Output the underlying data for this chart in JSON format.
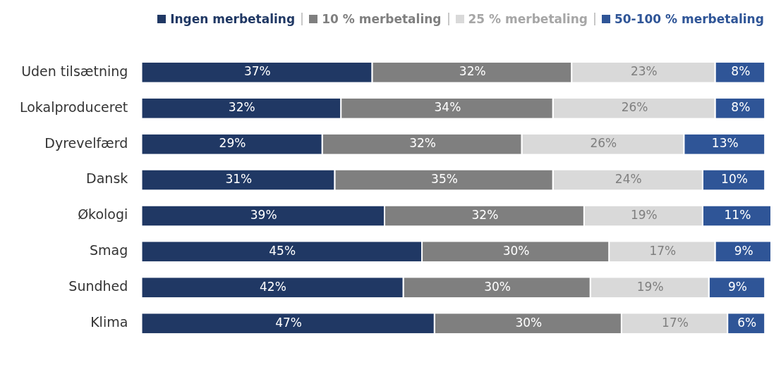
{
  "chart_data": {
    "type": "bar",
    "orientation": "horizontal",
    "stacked": true,
    "legend": "top",
    "grid": false,
    "tick_labels": "y",
    "xlim": [
      0,
      101
    ],
    "categories": [
      "Uden tilsætning",
      "Lokalproduceret",
      "Dyrevelfærd",
      "Dansk",
      "Økologi",
      "Smag",
      "Sundhed",
      "Klima"
    ],
    "series": [
      {
        "name": "Ingen merbetaling",
        "color": "#203864",
        "values": [
          37,
          32,
          29,
          31,
          39,
          45,
          42,
          47
        ],
        "value_labels": [
          "37%",
          "32%",
          "29%",
          "31%",
          "39%",
          "45%",
          "42%",
          "47%"
        ]
      },
      {
        "name": "10 % merbetaling",
        "color": "#7f7f7f",
        "values": [
          32,
          34,
          32,
          35,
          32,
          30,
          30,
          30
        ],
        "value_labels": [
          "32%",
          "34%",
          "32%",
          "35%",
          "32%",
          "30%",
          "30%",
          "30%"
        ]
      },
      {
        "name": "25 % merbetaling",
        "color": "#d9d9d9",
        "values": [
          23,
          26,
          26,
          24,
          19,
          17,
          19,
          17
        ],
        "value_labels": [
          "23%",
          "26%",
          "26%",
          "24%",
          "19%",
          "17%",
          "19%",
          "17%"
        ]
      },
      {
        "name": "50-100 % merbetaling",
        "color": "#2f5597",
        "values": [
          8,
          8,
          13,
          10,
          11,
          9,
          9,
          6
        ],
        "value_labels": [
          "8%",
          "8%",
          "13%",
          "10%",
          "11%",
          "9%",
          "9%",
          "6%"
        ]
      }
    ]
  }
}
